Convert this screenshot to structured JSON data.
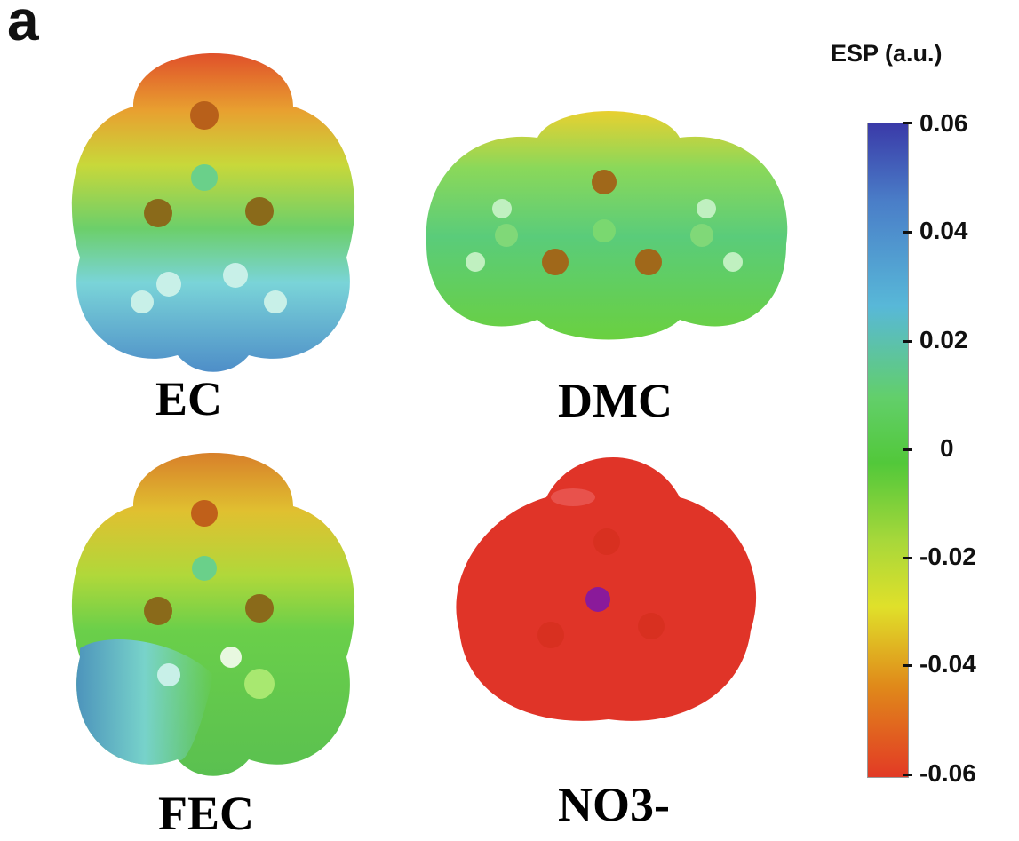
{
  "panel_label": "a",
  "molecules": [
    {
      "id": "ec",
      "label": "EC"
    },
    {
      "id": "dmc",
      "label": "DMC"
    },
    {
      "id": "fec",
      "label": "FEC"
    },
    {
      "id": "no3",
      "label": "NO3-"
    }
  ],
  "colorbar": {
    "title": "ESP (a.u.)",
    "ticks": [
      "0.06",
      "0.04",
      "0.02",
      "0",
      "-0.02",
      "-0.04",
      "-0.06"
    ],
    "range": [
      -0.06,
      0.06
    ],
    "colors": {
      "max": "#3a3aa8",
      "high": "#58b8d8",
      "mid": "#52c83a",
      "low_mid": "#e0e02a",
      "low": "#e08a1a",
      "min": "#e23a25"
    }
  }
}
